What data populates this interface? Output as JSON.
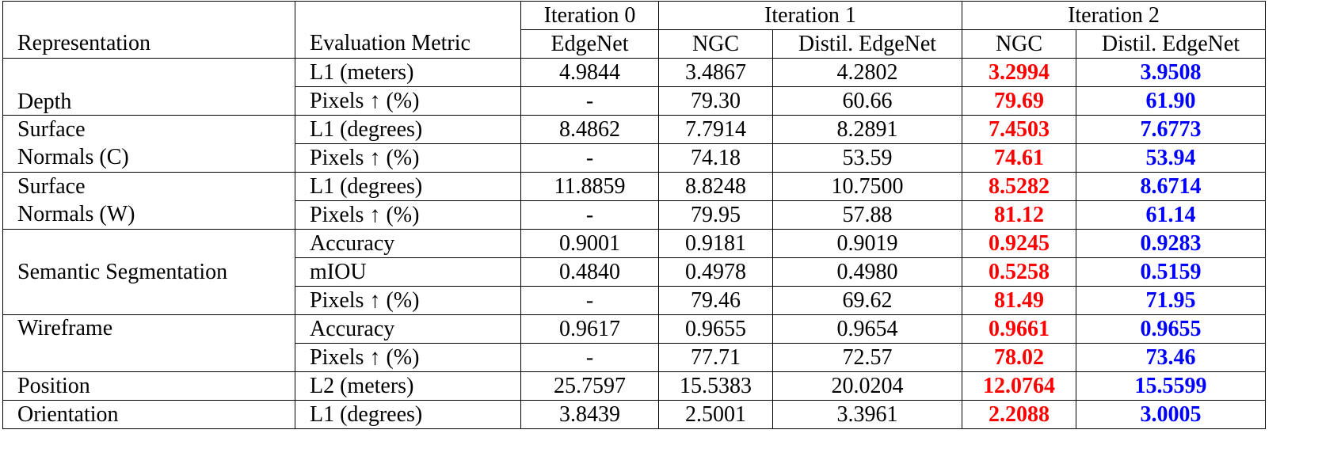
{
  "headers": {
    "representation": "Representation",
    "metric": "Evaluation Metric",
    "iter0": "Iteration 0",
    "iter1": "Iteration 1",
    "iter2": "Iteration 2",
    "edgenet": "EdgeNet",
    "ngc1": "NGC",
    "distil1": "Distil. EdgeNet",
    "ngc2": "NGC",
    "distil2": "Distil. EdgeNet"
  },
  "groups": {
    "depth": "Depth",
    "normals_c_1": "Surface",
    "normals_c_2": "Normals (C)",
    "normals_w_1": "Surface",
    "normals_w_2": "Normals (W)",
    "semseg": "Semantic Segmentation",
    "wireframe": "Wireframe",
    "position": "Position",
    "orientation": "Orientation"
  },
  "rows": [
    {
      "metric": "L1 (meters)",
      "v": [
        "4.9844",
        "3.4867",
        "4.2802",
        "3.2994",
        "3.9508"
      ]
    },
    {
      "metric": "Pixels ↑ (%)",
      "v": [
        "-",
        "79.30",
        "60.66",
        "79.69",
        "61.90"
      ]
    },
    {
      "metric": "L1 (degrees)",
      "v": [
        "8.4862",
        "7.7914",
        "8.2891",
        "7.4503",
        "7.6773"
      ]
    },
    {
      "metric": "Pixels ↑ (%)",
      "v": [
        "-",
        "74.18",
        "53.59",
        "74.61",
        "53.94"
      ]
    },
    {
      "metric": "L1 (degrees)",
      "v": [
        "11.8859",
        "8.8248",
        "10.7500",
        "8.5282",
        "8.6714"
      ]
    },
    {
      "metric": "Pixels ↑ (%)",
      "v": [
        "-",
        "79.95",
        "57.88",
        "81.12",
        "61.14"
      ]
    },
    {
      "metric": "Accuracy",
      "v": [
        "0.9001",
        "0.9181",
        "0.9019",
        "0.9245",
        "0.9283"
      ]
    },
    {
      "metric": "mIOU",
      "v": [
        "0.4840",
        "0.4978",
        "0.4980",
        "0.5258",
        "0.5159"
      ]
    },
    {
      "metric": "Pixels ↑ (%)",
      "v": [
        "-",
        "79.46",
        "69.62",
        "81.49",
        "71.95"
      ]
    },
    {
      "metric": "Accuracy",
      "v": [
        "0.9617",
        "0.9655",
        "0.9654",
        "0.9661",
        "0.9655"
      ]
    },
    {
      "metric": "Pixels ↑ (%)",
      "v": [
        "-",
        "77.71",
        "72.57",
        "78.02",
        "73.46"
      ]
    },
    {
      "metric": "L2 (meters)",
      "v": [
        "25.7597",
        "15.5383",
        "20.0204",
        "12.0764",
        "15.5599"
      ]
    },
    {
      "metric": "L1 (degrees)",
      "v": [
        "3.8439",
        "2.5001",
        "3.3961",
        "2.2088",
        "3.0005"
      ]
    }
  ],
  "colors": {
    "ngc_highlight": "#ff0000",
    "distil_highlight": "#0000ff"
  }
}
